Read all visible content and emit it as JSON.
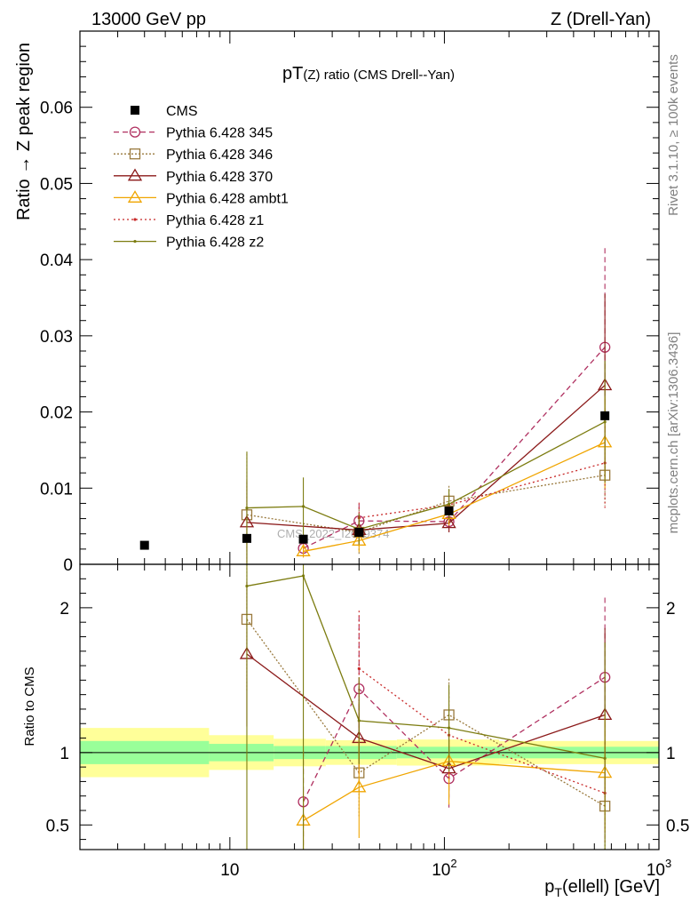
{
  "header": {
    "left": "13000 GeV pp",
    "right": "Z (Drell-Yan)"
  },
  "side_labels": {
    "rivet": "Rivet 3.1.10, ≥ 100k events",
    "mcplots": "mcplots.cern.ch [arXiv:1306.3436]"
  },
  "watermark": "CMS_2022_I2079374",
  "chart_data": {
    "type": "line",
    "title_main": "pT",
    "title_sub": "(Z) ratio (CMS Drell--Yan)",
    "xlabel_main": "p",
    "xlabel_sub": "T",
    "xlabel_rest": "(ellell) [GeV]",
    "ylabel": "Ratio → Z peak region",
    "ratio_ylabel": "Ratio to CMS",
    "x_scale": "log",
    "xlim": [
      2,
      1000
    ],
    "ylim": [
      0,
      0.07
    ],
    "ratio_ylim": [
      0.33,
      2.3
    ],
    "x_ticks": [
      {
        "value": 10,
        "label": "10"
      },
      {
        "value": 100,
        "label": "10",
        "exp": "2"
      },
      {
        "value": 1000,
        "label": "10",
        "exp": "3"
      }
    ],
    "y_ticks": [
      {
        "value": 0,
        "label": "0"
      },
      {
        "value": 0.01,
        "label": "0.01"
      },
      {
        "value": 0.02,
        "label": "0.02"
      },
      {
        "value": 0.03,
        "label": "0.03"
      },
      {
        "value": 0.04,
        "label": "0.04"
      },
      {
        "value": 0.05,
        "label": "0.05"
      },
      {
        "value": 0.06,
        "label": "0.06"
      }
    ],
    "ratio_ticks": [
      {
        "value": 0.5,
        "label": "0.5"
      },
      {
        "value": 1,
        "label": "1"
      },
      {
        "value": 2,
        "label": "2"
      }
    ],
    "legend_position": "top-left",
    "bins": [
      {
        "lo": 2,
        "hi": 8
      },
      {
        "lo": 8,
        "hi": 16
      },
      {
        "lo": 16,
        "hi": 28
      },
      {
        "lo": 28,
        "hi": 60
      },
      {
        "lo": 60,
        "hi": 180
      },
      {
        "lo": 180,
        "hi": 1000
      }
    ],
    "bands": {
      "inner": [
        0.08,
        0.06,
        0.045,
        0.045,
        0.04,
        0.04
      ],
      "outer": [
        0.17,
        0.12,
        0.095,
        0.085,
        0.09,
        0.08
      ]
    },
    "data": {
      "name": "CMS",
      "color": "#000000",
      "x": [
        4,
        12,
        22,
        40,
        105,
        560
      ],
      "y": [
        0.0025,
        0.0034,
        0.0033,
        0.0042,
        0.007,
        0.0195
      ]
    },
    "series": [
      {
        "name": "Pythia 6.428 345",
        "color": "#b03060",
        "dash": "6,4",
        "marker": "circle",
        "x": [
          22,
          40,
          105,
          560
        ],
        "y": [
          0.0021,
          0.0057,
          0.0056,
          0.0285
        ],
        "err": [
          0.0012,
          0.0022,
          0.0014,
          0.013
        ],
        "ratio": [
          0.66,
          1.44,
          0.82,
          1.52
        ],
        "ratio_err": [
          0.35,
          0.5,
          0.2,
          0.55
        ]
      },
      {
        "name": "Pythia 6.428 346",
        "color": "#9a7a3e",
        "dash": "2,2",
        "marker": "square",
        "x": [
          12,
          40,
          105,
          560
        ],
        "y": [
          0.0065,
          0.0042,
          0.0083,
          0.0117
        ],
        "err": [
          0.008,
          0.003,
          0.002,
          0.004
        ],
        "ratio": [
          1.92,
          0.86,
          1.26,
          0.63
        ],
        "ratio_err": [
          0.5,
          0.3,
          0.25,
          0.3
        ]
      },
      {
        "name": "Pythia 6.428 370",
        "color": "#8b1a1a",
        "dash": "",
        "marker": "triangle",
        "x": [
          12,
          40,
          105,
          560
        ],
        "y": [
          0.0055,
          0.0045,
          0.0054,
          0.0235
        ],
        "err": [
          0.0055,
          0.002,
          0.0012,
          0.012
        ],
        "ratio": [
          1.68,
          1.1,
          0.89,
          1.26
        ],
        "ratio_err": [
          0.5,
          0.25,
          0.2,
          0.6
        ]
      },
      {
        "name": "Pythia 6.428 ambt1",
        "color": "#f0a500",
        "dash": "",
        "marker": "triangle",
        "x": [
          22,
          40,
          105,
          560
        ],
        "y": [
          0.0017,
          0.0031,
          0.0066,
          0.016
        ],
        "err": [
          0.0008,
          0.0015,
          0.0015,
          0.006
        ],
        "ratio": [
          0.53,
          0.76,
          0.94,
          0.86
        ],
        "ratio_err": [
          0.2,
          0.35,
          0.3,
          0.4
        ]
      },
      {
        "name": "Pythia 6.428 z1",
        "color": "#c82828",
        "dash": "2,3",
        "marker": "dot",
        "x": [
          40,
          105,
          560
        ],
        "y": [
          0.0061,
          0.0078,
          0.0133
        ],
        "err": [
          0.002,
          0.002,
          0.006
        ],
        "ratio": [
          1.58,
          1.12,
          0.72
        ],
        "ratio_err": [
          0.4,
          0.3,
          0.35
        ]
      },
      {
        "name": "Pythia 6.428 z2",
        "color": "#7c7c10",
        "dash": "",
        "marker": "dot",
        "x": [
          12,
          22,
          40,
          105,
          560
        ],
        "y": [
          0.0074,
          0.0076,
          0.0046,
          0.0079,
          0.0187
        ],
        "err": [
          0.0074,
          0.0038,
          0.002,
          0.002,
          0.008
        ],
        "ratio": [
          2.15,
          2.22,
          1.22,
          1.17,
          0.96
        ],
        "ratio_err": [
          2.0,
          2.0,
          0.3,
          0.3,
          0.8
        ]
      }
    ]
  }
}
